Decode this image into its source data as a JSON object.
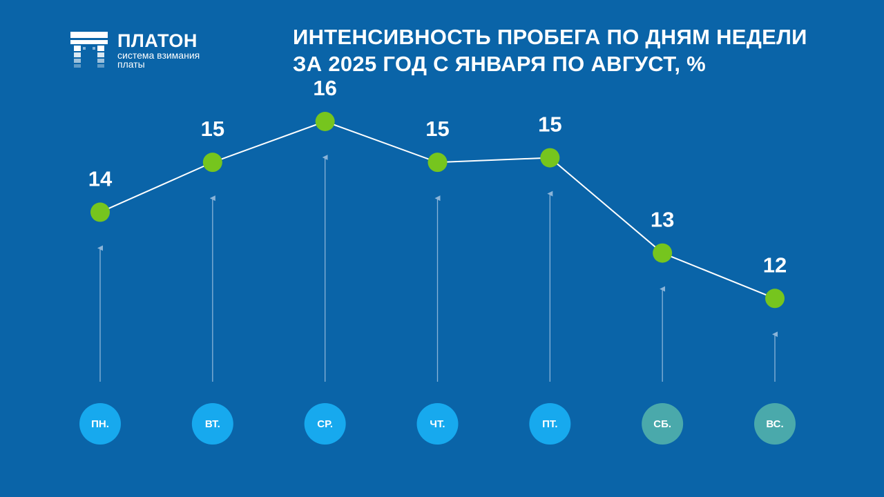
{
  "brand": {
    "name": "ПЛАТОН",
    "subtitle_line1": "система взимания",
    "subtitle_line2": "платы"
  },
  "title": {
    "line1": "ИНТЕНСИВНОСТЬ ПРОБЕГА ПО ДНЯМ НЕДЕЛИ",
    "line2": "ЗА 2025 ГОД С ЯНВАРЯ ПО АВГУСТ, %"
  },
  "colors": {
    "background": "#0a64a8",
    "marker": "#76c51e",
    "weekday_badge": "#17a9ee",
    "weekend_badge": "#4aa9ab",
    "line": "#ffffff",
    "arrow": "#8bb4d8"
  },
  "chart_data": {
    "type": "line",
    "title": "ИНТЕНСИВНОСТЬ ПРОБЕГА ПО ДНЯМ НЕДЕЛИ ЗА 2025 ГОД С ЯНВАРЯ ПО АВГУСТ, %",
    "categories": [
      "ПН.",
      "ВТ.",
      "СР.",
      "ЧТ.",
      "ПТ.",
      "СБ.",
      "ВС."
    ],
    "weekend": [
      false,
      false,
      false,
      false,
      false,
      true,
      true
    ],
    "values": [
      13.8,
      14.9,
      15.8,
      14.9,
      15.0,
      12.9,
      11.9
    ],
    "labels": [
      "14",
      "15",
      "16",
      "15",
      "15",
      "13",
      "12"
    ],
    "ylim": [
      9.5,
      16.5
    ],
    "grid": false
  }
}
